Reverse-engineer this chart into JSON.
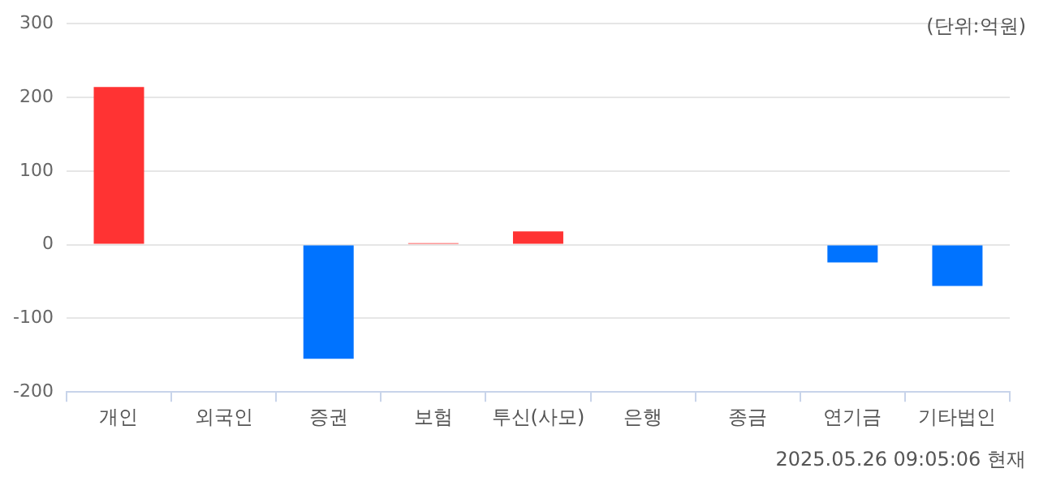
{
  "chart_data": {
    "type": "bar",
    "categories": [
      "개인",
      "외국인",
      "증권",
      "보험",
      "투신(사모)",
      "은행",
      "종금",
      "연기금",
      "기타법인"
    ],
    "values": [
      214,
      0,
      -155,
      2,
      18,
      0,
      0,
      -24,
      -56
    ],
    "colors": [
      "#ff3333",
      "#ff3333",
      "#0073ff",
      "#ff3333",
      "#ff3333",
      "#ff3333",
      "#ff3333",
      "#0073ff",
      "#0073ff"
    ],
    "ylim": [
      -200,
      300
    ],
    "yticks": [
      -200,
      -100,
      0,
      100,
      200,
      300
    ],
    "grid": "y",
    "legend": false,
    "annotations": [
      "(단위:억원)",
      "2025.05.26 09:05:06 현재"
    ]
  }
}
